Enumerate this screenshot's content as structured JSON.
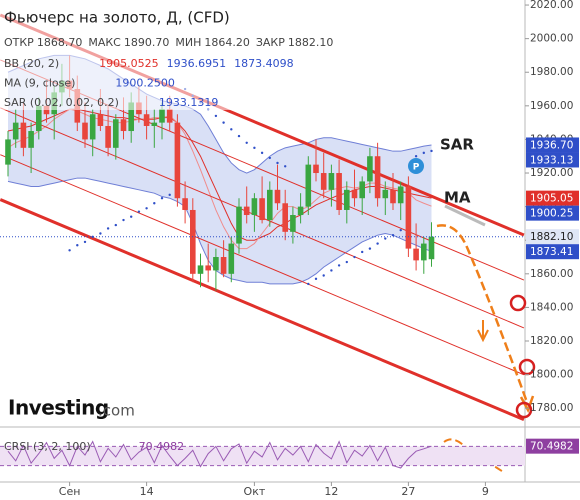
{
  "header": {
    "title": "Фьючерс на золото, Д, (CFD)",
    "ohlc": [
      {
        "label": "ОТКР",
        "value": "1868.70"
      },
      {
        "label": "МАКС",
        "value": "1890.70"
      },
      {
        "label": "МИН",
        "value": "1864.20"
      },
      {
        "label": "ЗАКР",
        "value": "1882.10"
      }
    ],
    "indicators": [
      {
        "label": "BB (20, 2)",
        "values": [
          "1905.0525",
          "1936.6951",
          "1873.4098"
        ],
        "colors": [
          "#e0302a",
          "#2f4fc8",
          "#2f4fc8"
        ]
      },
      {
        "label": "MA (9, close)",
        "values": [
          "1900.2500"
        ],
        "colors": [
          "#2f4fc8"
        ]
      },
      {
        "label": "SAR (0.02, 0.02, 0.2)",
        "values": [
          "1933.1319"
        ],
        "colors": [
          "#2f4fc8"
        ]
      }
    ]
  },
  "watermark": [
    "Investing",
    ".com"
  ],
  "chart_data": {
    "type": "candlestick",
    "categories": [
      null,
      null,
      null,
      null,
      null,
      null,
      null,
      null,
      "Сен",
      null,
      null,
      null,
      null,
      null,
      null,
      null,
      null,
      null,
      "14",
      null,
      null,
      null,
      null,
      null,
      null,
      null,
      null,
      null,
      null,
      null,
      null,
      null,
      "Окт",
      null,
      null,
      null,
      null,
      null,
      null,
      null,
      null,
      null,
      "12",
      null,
      null,
      null,
      null,
      null,
      null,
      null,
      null,
      null,
      "27",
      null,
      null,
      null,
      null,
      null,
      null,
      null,
      null,
      null,
      "9"
    ],
    "ohlc": {
      "open": [
        1925,
        1940,
        1950,
        1935,
        1945,
        1960,
        1955,
        1968,
        1975,
        1970,
        1950,
        1940,
        1955,
        1948,
        1935,
        1952,
        1945,
        1962,
        1955,
        1948,
        1950,
        1958,
        1950,
        1905,
        1898,
        1860,
        1865,
        1862,
        1870,
        1860,
        1878,
        1900,
        1895,
        1905,
        1892,
        1910,
        1902,
        1885,
        1895,
        1900,
        1925,
        1920,
        1910,
        1920,
        1898,
        1910,
        1905,
        1915,
        1930,
        1905,
        1910,
        1902,
        1912,
        1875,
        1868,
        1868.7,
        null,
        null,
        null,
        null,
        null,
        null,
        null
      ],
      "high": [
        1945,
        1958,
        1962,
        1950,
        1965,
        1975,
        1972,
        1985,
        1990,
        1978,
        1962,
        1958,
        1970,
        1960,
        1955,
        1965,
        1968,
        1972,
        1966,
        1958,
        1962,
        1966,
        1955,
        1915,
        1905,
        1872,
        1878,
        1875,
        1880,
        1882,
        1905,
        1912,
        1908,
        1918,
        1915,
        1925,
        1910,
        1900,
        1908,
        1930,
        1940,
        1932,
        1925,
        1928,
        1915,
        1922,
        1918,
        1935,
        1938,
        1915,
        1920,
        1915,
        1918,
        1890,
        1882,
        1890.7,
        null,
        null,
        null,
        null,
        null,
        null,
        null
      ],
      "low": [
        1918,
        1935,
        1930,
        1920,
        1940,
        1950,
        1940,
        1960,
        1965,
        1945,
        1935,
        1930,
        1945,
        1930,
        1928,
        1940,
        1938,
        1950,
        1940,
        1935,
        1940,
        1945,
        1900,
        1890,
        1855,
        1852,
        1855,
        1850,
        1858,
        1855,
        1872,
        1890,
        1885,
        1890,
        1888,
        1898,
        1880,
        1878,
        1890,
        1895,
        1915,
        1905,
        1900,
        1895,
        1890,
        1900,
        1895,
        1908,
        1900,
        1895,
        1898,
        1892,
        1870,
        1862,
        1860,
        1864.2,
        null,
        null,
        null,
        null,
        null,
        null,
        null
      ],
      "close": [
        1940,
        1950,
        1935,
        1945,
        1960,
        1955,
        1968,
        1975,
        1970,
        1950,
        1940,
        1955,
        1948,
        1935,
        1952,
        1945,
        1962,
        1955,
        1948,
        1950,
        1958,
        1950,
        1905,
        1898,
        1860,
        1865,
        1862,
        1870,
        1860,
        1878,
        1900,
        1895,
        1905,
        1892,
        1910,
        1902,
        1885,
        1895,
        1900,
        1925,
        1920,
        1910,
        1920,
        1898,
        1910,
        1905,
        1915,
        1930,
        1905,
        1910,
        1902,
        1912,
        1875,
        1868,
        1878,
        1882.1,
        null,
        null,
        null,
        null,
        null,
        null,
        null
      ]
    },
    "up_color": "#3aa641",
    "down_color": "#e8453c",
    "bb": {
      "color": "#6f7fd6",
      "fill": "#c9d3f2",
      "basis_color": "#e0302a",
      "upper": [
        1980,
        1982,
        1984,
        1986,
        1988,
        1989,
        1990,
        1990,
        1990,
        1989,
        1988,
        1986,
        1984,
        1982,
        1979,
        1976,
        1973,
        1970,
        1967,
        1965,
        1963,
        1962,
        1961,
        1960,
        1958,
        1955,
        1948,
        1940,
        1932,
        1926,
        1922,
        1920,
        1922,
        1926,
        1930,
        1933,
        1935,
        1936,
        1937,
        1938,
        1940,
        1941,
        1941,
        1940,
        1939,
        1938,
        1937,
        1936,
        1935,
        1934,
        1933,
        1933,
        1934,
        1935,
        1936,
        1936.6951,
        null,
        null,
        null,
        null,
        null,
        null,
        null
      ],
      "lower": [
        1915,
        1914,
        1913,
        1912,
        1912,
        1913,
        1914,
        1915,
        1916,
        1917,
        1917,
        1916,
        1915,
        1914,
        1913,
        1912,
        1911,
        1910,
        1909,
        1908,
        1906,
        1905,
        1903,
        1900,
        1890,
        1878,
        1868,
        1862,
        1859,
        1857,
        1856,
        1855,
        1855,
        1855,
        1854,
        1854,
        1854,
        1854,
        1855,
        1857,
        1860,
        1864,
        1867,
        1870,
        1873,
        1876,
        1879,
        1881,
        1883,
        1884,
        1883,
        1881,
        1879,
        1877,
        1875,
        1873.4098,
        null,
        null,
        null,
        null,
        null,
        null,
        null
      ],
      "basis": [
        1945,
        1946,
        1947,
        1948,
        1950,
        1952,
        1954,
        1956,
        1958,
        1958,
        1957,
        1956,
        1955,
        1954,
        1953,
        1953,
        1952,
        1952,
        1952,
        1952,
        1953,
        1953,
        1950,
        1945,
        1938,
        1930,
        1920,
        1910,
        1900,
        1890,
        1882,
        1880,
        1880,
        1882,
        1884,
        1888,
        1890,
        1893,
        1895,
        1898,
        1901,
        1903,
        1905,
        1907,
        1908,
        1910,
        1911,
        1912,
        1912,
        1911,
        1910,
        1909,
        1908,
        1907,
        1906,
        1905.0525,
        null,
        null,
        null,
        null,
        null,
        null,
        null
      ]
    },
    "ma": {
      "color": "#f08c8c",
      "values": [
        1935,
        1938,
        1940,
        1942,
        1945,
        1948,
        1952,
        1955,
        1958,
        1957,
        1955,
        1953,
        1952,
        1951,
        1950,
        1950,
        1951,
        1952,
        1952,
        1953,
        1953,
        1954,
        1950,
        1943,
        1933,
        1922,
        1910,
        1898,
        1888,
        1880,
        1875,
        1875,
        1878,
        1884,
        1890,
        1896,
        1900,
        1900,
        1898,
        1900,
        1904,
        1908,
        1910,
        1911,
        1912,
        1911,
        1912,
        1914,
        1914,
        1912,
        1911,
        1910,
        1908,
        1904,
        1902,
        1900.25,
        null,
        null,
        null,
        null,
        null,
        null,
        null
      ]
    },
    "sar": {
      "color": "#2f4fc8",
      "values": [
        null,
        null,
        null,
        null,
        null,
        null,
        null,
        null,
        1874,
        1877,
        1879,
        1882,
        1884,
        1887,
        1889,
        1892,
        1894,
        1897,
        1899,
        1902,
        1905,
        1907,
        1910,
        1970,
        1966,
        1962,
        1958,
        1954,
        1950,
        1946,
        1942,
        1938,
        1935,
        1932,
        1929,
        1926,
        1924,
        null,
        null,
        1854,
        1857,
        1859,
        1862,
        1865,
        1867,
        1870,
        1873,
        1875,
        1878,
        1881,
        1883,
        1886,
        1889,
        1930,
        1932,
        1933.13,
        null,
        null,
        null,
        null,
        null,
        null,
        null
      ]
    },
    "channel_lines": [
      {
        "x": [
          -1,
          67
        ],
        "y": [
          2014.1,
          1883.1
        ],
        "width": 3
      },
      {
        "x": [
          -1,
          67
        ],
        "y": [
          1987.3,
          1856.3
        ],
        "width": 1
      },
      {
        "x": [
          -1,
          67
        ],
        "y": [
          1958.8,
          1827.8
        ],
        "width": 1
      },
      {
        "x": [
          -1,
          67
        ],
        "y": [
          1930.9,
          1799.9
        ],
        "width": 1
      },
      {
        "x": [
          -1,
          67
        ],
        "y": [
          1904.2,
          1773.2
        ],
        "width": 3
      }
    ],
    "channel_color": "#e0302a",
    "ylim": [
      1770,
      2023
    ],
    "yticks": [
      {
        "value": 1780,
        "label": "1780.00"
      },
      {
        "value": 1800,
        "label": "1800.00"
      },
      {
        "value": 1820,
        "label": "1820.00"
      },
      {
        "value": 1840,
        "label": "1840.00"
      },
      {
        "value": 1860,
        "label": "1860.00"
      },
      {
        "value": 1880,
        "label": "1880.00"
      },
      {
        "value": 1900,
        "label": "1900.00"
      },
      {
        "value": 1920,
        "label": "1920.00"
      },
      {
        "value": 1940,
        "label": "1940.00"
      },
      {
        "value": 1960,
        "label": "1960.00"
      },
      {
        "value": 1980,
        "label": "1980.00"
      },
      {
        "value": 2000,
        "label": "2000.00"
      },
      {
        "value": 2020,
        "label": "2020.00"
      }
    ],
    "price_tags": [
      {
        "value": 1936.7,
        "label": "1936.70",
        "color": "#2f4fc8",
        "text_color": "#ffffff"
      },
      {
        "value": 1933.13,
        "label": "1933.13",
        "color": "#2f4fc8",
        "text_color": "#ffffff"
      },
      {
        "value": 1905.05,
        "label": "1905.05",
        "color": "#e0302a",
        "text_color": "#ffffff"
      },
      {
        "value": 1900.25,
        "label": "1900.25",
        "color": "#2f4fc8",
        "text_color": "#ffffff"
      },
      {
        "value": 1882.1,
        "label": "1882.10",
        "color": "#dfe6f5",
        "text_color": "#222222"
      },
      {
        "value": 1873.41,
        "label": "1873.41",
        "color": "#2f4fc8",
        "text_color": "#ffffff"
      }
    ],
    "annotations": [
      "SAR",
      "MA"
    ],
    "crsi": {
      "label": "CRSI (3, 2, 100)",
      "value_label": "70.4982",
      "tag_value": 70.4982,
      "color": "#9a5cb4",
      "ylim": [
        0,
        100
      ],
      "levels": [
        70,
        30
      ],
      "values": [
        60,
        40,
        72,
        35,
        55,
        78,
        45,
        62,
        30,
        70,
        52,
        80,
        38,
        66,
        48,
        74,
        42,
        58,
        68,
        36,
        72,
        50,
        30,
        45,
        62,
        28,
        55,
        70,
        40,
        65,
        75,
        35,
        60,
        48,
        78,
        42,
        66,
        52,
        70,
        38,
        74,
        56,
        44,
        80,
        36,
        62,
        50,
        72,
        40,
        68,
        30,
        25,
        45,
        60,
        65,
        70.4982,
        null,
        null,
        null,
        null,
        null,
        null,
        null
      ]
    }
  }
}
